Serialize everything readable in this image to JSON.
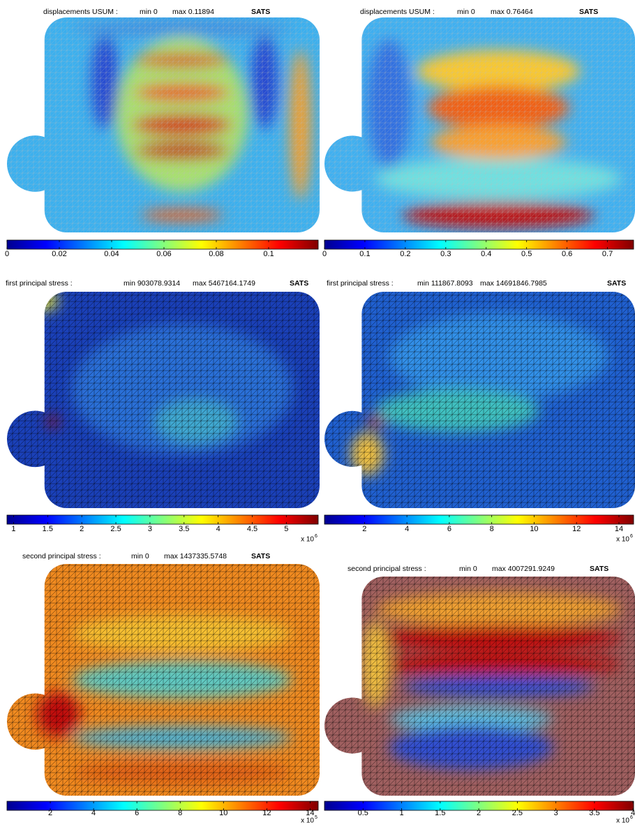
{
  "panels": [
    {
      "title": "displacements USUM :",
      "min": "min 0",
      "max": "max 0.11894",
      "brand": "SATS",
      "colorbar": {
        "lim": [
          0,
          0.11894
        ],
        "ticks": [
          0,
          0.02,
          0.04,
          0.06,
          0.08,
          0.1
        ]
      }
    },
    {
      "title": "displacements USUM :",
      "min": "min 0",
      "max": "max 0.76464",
      "brand": "SATS",
      "colorbar": {
        "lim": [
          0,
          0.76464
        ],
        "ticks": [
          0,
          0.1,
          0.2,
          0.3,
          0.4,
          0.5,
          0.6,
          0.7
        ]
      }
    },
    {
      "title": "first principal stress :",
      "min": "min 903078.9314",
      "max": "max 5467164.1749",
      "brand": "SATS",
      "colorbar": {
        "lim": [
          0.9030789314,
          5.4671641749
        ],
        "ticks": [
          1,
          1.5,
          2,
          2.5,
          3,
          3.5,
          4,
          4.5,
          5
        ],
        "multiplier": "x 10",
        "exponent": "6"
      }
    },
    {
      "title": "first principal stress :",
      "min": "min 111867.8093",
      "max": "max 14691846.7985",
      "brand": "SATS",
      "colorbar": {
        "lim": [
          0.1118678093,
          14.6918467985
        ],
        "ticks": [
          2,
          4,
          6,
          8,
          10,
          12,
          14
        ],
        "multiplier": "x 10",
        "exponent": "6"
      }
    },
    {
      "title": "second principal stress :",
      "min": "min 0",
      "max": "max 1437335.5748",
      "brand": "SATS",
      "colorbar": {
        "lim": [
          0,
          14.373355748
        ],
        "ticks": [
          2,
          4,
          6,
          8,
          10,
          12,
          14
        ],
        "multiplier": "x 10",
        "exponent": "5"
      }
    },
    {
      "title": "second principal stress :",
      "min": "min 0",
      "max": "max 4007291.9249",
      "brand": "SATS",
      "colorbar": {
        "lim": [
          0,
          4.0072919249
        ],
        "ticks": [
          0.5,
          1,
          1.5,
          2,
          2.5,
          3,
          3.5,
          4
        ],
        "multiplier": "x 10",
        "exponent": "6"
      }
    }
  ]
}
